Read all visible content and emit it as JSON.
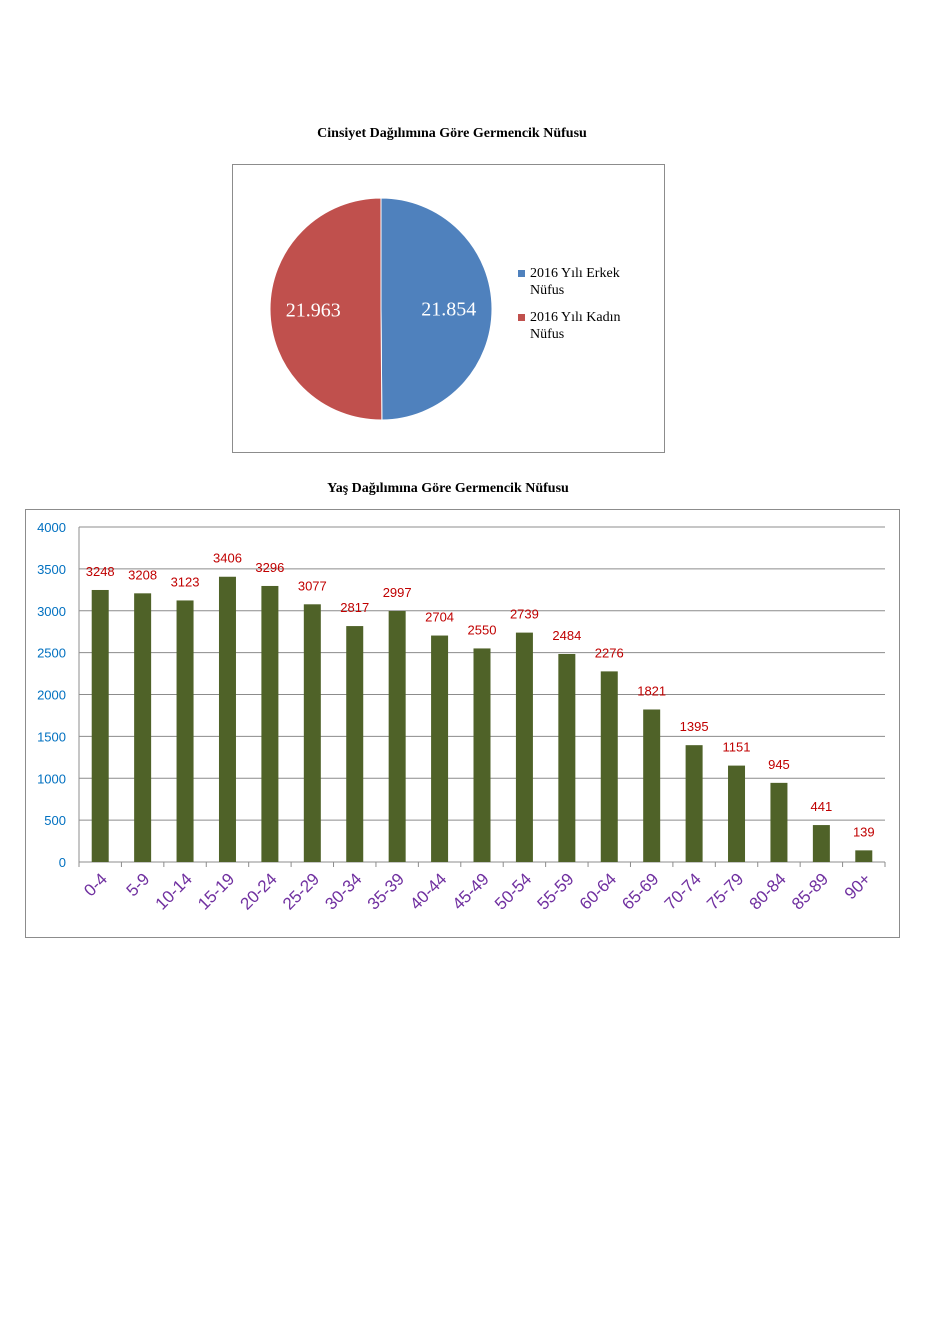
{
  "charts": {
    "pie": {
      "title": "Cinsiyet Dağılımına Göre Germencik Nüfusu"
    },
    "bar": {
      "title": "Yaş Dağılımına Göre Germencik Nüfusu"
    }
  },
  "colors": {
    "male": "#4f81bd",
    "female": "#c0504d",
    "bar": "#4f6228",
    "bar_label": "#c00000",
    "y_tick": "#0070c0",
    "x_tick": "#7030a0",
    "grid": "#8c8c8c"
  },
  "chart_data": [
    {
      "type": "pie",
      "title": "Cinsiyet Dağılımına Göre Germencik Nüfusu",
      "categories": [
        "2016 Yılı Erkek Nüfus",
        "2016 Yılı Kadın Nüfus"
      ],
      "values": [
        21854,
        21963
      ],
      "value_labels": [
        "21.854",
        "21.963"
      ],
      "legend": "right"
    },
    {
      "type": "bar",
      "title": "Yaş Dağılımına Göre Germencik Nüfusu",
      "categories": [
        "0-4",
        "5-9",
        "10-14",
        "15-19",
        "20-24",
        "25-29",
        "30-34",
        "35-39",
        "40-44",
        "45-49",
        "50-54",
        "55-59",
        "60-64",
        "65-69",
        "70-74",
        "75-79",
        "80-84",
        "85-89",
        "90+"
      ],
      "values": [
        3248,
        3208,
        3123,
        3406,
        3296,
        3077,
        2817,
        2997,
        2704,
        2550,
        2739,
        2484,
        2276,
        1821,
        1395,
        1151,
        945,
        441,
        139
      ],
      "xlabel": "",
      "ylabel": "",
      "ylim": [
        0,
        4000
      ],
      "yticks": [
        0,
        500,
        1000,
        1500,
        2000,
        2500,
        3000,
        3500,
        4000
      ],
      "grid": true,
      "data_labels": true
    }
  ]
}
